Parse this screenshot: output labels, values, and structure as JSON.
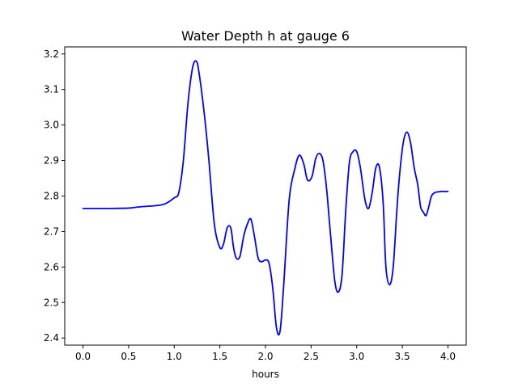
{
  "chart_data": {
    "type": "line",
    "title": "Water Depth h at gauge 6",
    "xlabel": "hours",
    "ylabel": "",
    "xlim": [
      -0.2,
      4.2
    ],
    "ylim": [
      2.38,
      3.22
    ],
    "xticks": [
      0.0,
      0.5,
      1.0,
      1.5,
      2.0,
      2.5,
      3.0,
      3.5,
      4.0
    ],
    "xtick_labels": [
      "0.0",
      "0.5",
      "1.0",
      "1.5",
      "2.0",
      "2.5",
      "3.0",
      "3.5",
      "4.0"
    ],
    "yticks": [
      2.4,
      2.5,
      2.6,
      2.7,
      2.8,
      2.9,
      3.0,
      3.1,
      3.2
    ],
    "ytick_labels": [
      "2.4",
      "2.5",
      "2.6",
      "2.7",
      "2.8",
      "2.9",
      "3.0",
      "3.1",
      "3.2"
    ],
    "grid": false,
    "series": [
      {
        "color": "#0000ff",
        "x": [
          0.0,
          0.25,
          0.5,
          0.6,
          0.7,
          0.8,
          0.9,
          1.0,
          1.05,
          1.1,
          1.15,
          1.2,
          1.24,
          1.27,
          1.33,
          1.38,
          1.44,
          1.5,
          1.54,
          1.58,
          1.62,
          1.65,
          1.68,
          1.72,
          1.76,
          1.8,
          1.84,
          1.88,
          1.92,
          1.96,
          2.0,
          2.04,
          2.08,
          2.12,
          2.16,
          2.2,
          2.26,
          2.32,
          2.37,
          2.42,
          2.46,
          2.51,
          2.55,
          2.59,
          2.63,
          2.67,
          2.71,
          2.76,
          2.8,
          2.84,
          2.88,
          2.92,
          2.96,
          3.0,
          3.04,
          3.09,
          3.13,
          3.17,
          3.21,
          3.25,
          3.29,
          3.32,
          3.36,
          3.4,
          3.44,
          3.47,
          3.51,
          3.55,
          3.59,
          3.63,
          3.67,
          3.7,
          3.73,
          3.76,
          3.79,
          3.82,
          3.86,
          3.9,
          3.93,
          3.96,
          4.0
        ],
        "y": [
          2.765,
          2.765,
          2.766,
          2.769,
          2.771,
          2.773,
          2.778,
          2.795,
          2.81,
          2.9,
          3.06,
          3.16,
          3.18,
          3.15,
          3.03,
          2.9,
          2.72,
          2.655,
          2.665,
          2.71,
          2.71,
          2.655,
          2.625,
          2.63,
          2.685,
          2.72,
          2.735,
          2.685,
          2.625,
          2.615,
          2.62,
          2.61,
          2.54,
          2.43,
          2.42,
          2.55,
          2.79,
          2.875,
          2.915,
          2.89,
          2.845,
          2.855,
          2.905,
          2.92,
          2.9,
          2.82,
          2.7,
          2.56,
          2.53,
          2.58,
          2.76,
          2.895,
          2.925,
          2.925,
          2.88,
          2.79,
          2.765,
          2.81,
          2.88,
          2.88,
          2.78,
          2.6,
          2.55,
          2.6,
          2.76,
          2.86,
          2.95,
          2.98,
          2.95,
          2.88,
          2.83,
          2.77,
          2.755,
          2.745,
          2.77,
          2.8,
          2.81,
          2.812,
          2.813,
          2.813,
          2.813
        ]
      }
    ]
  }
}
